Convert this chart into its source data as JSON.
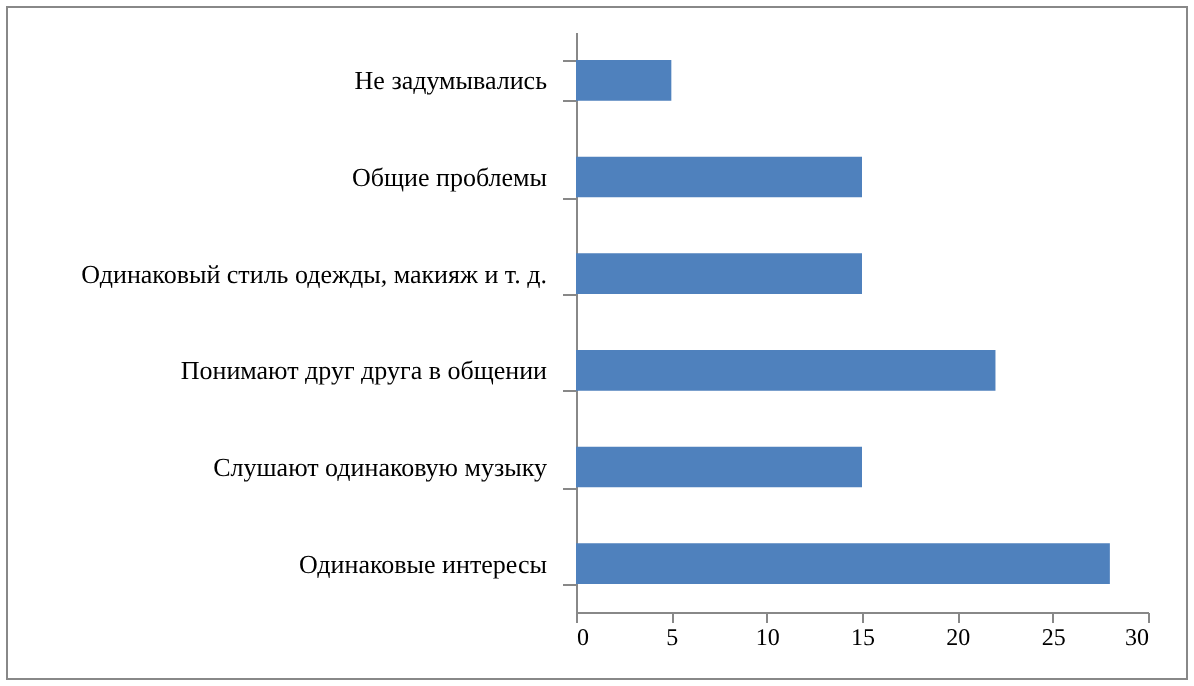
{
  "chart_data": {
    "type": "bar",
    "orientation": "horizontal",
    "categories": [
      "Не задумывались",
      "Общие проблемы",
      "Одинаковый стиль одежды, макияж и т. д.",
      "Понимают друг друга в общении",
      "Слушают одинаковую  музыку",
      "Одинаковые интересы"
    ],
    "values": [
      5,
      15,
      15,
      22,
      15,
      28
    ],
    "color": "#4f81bd",
    "xlim": [
      0,
      30
    ],
    "xticks": [
      0,
      5,
      10,
      15,
      20,
      25,
      30
    ],
    "grid": false
  }
}
